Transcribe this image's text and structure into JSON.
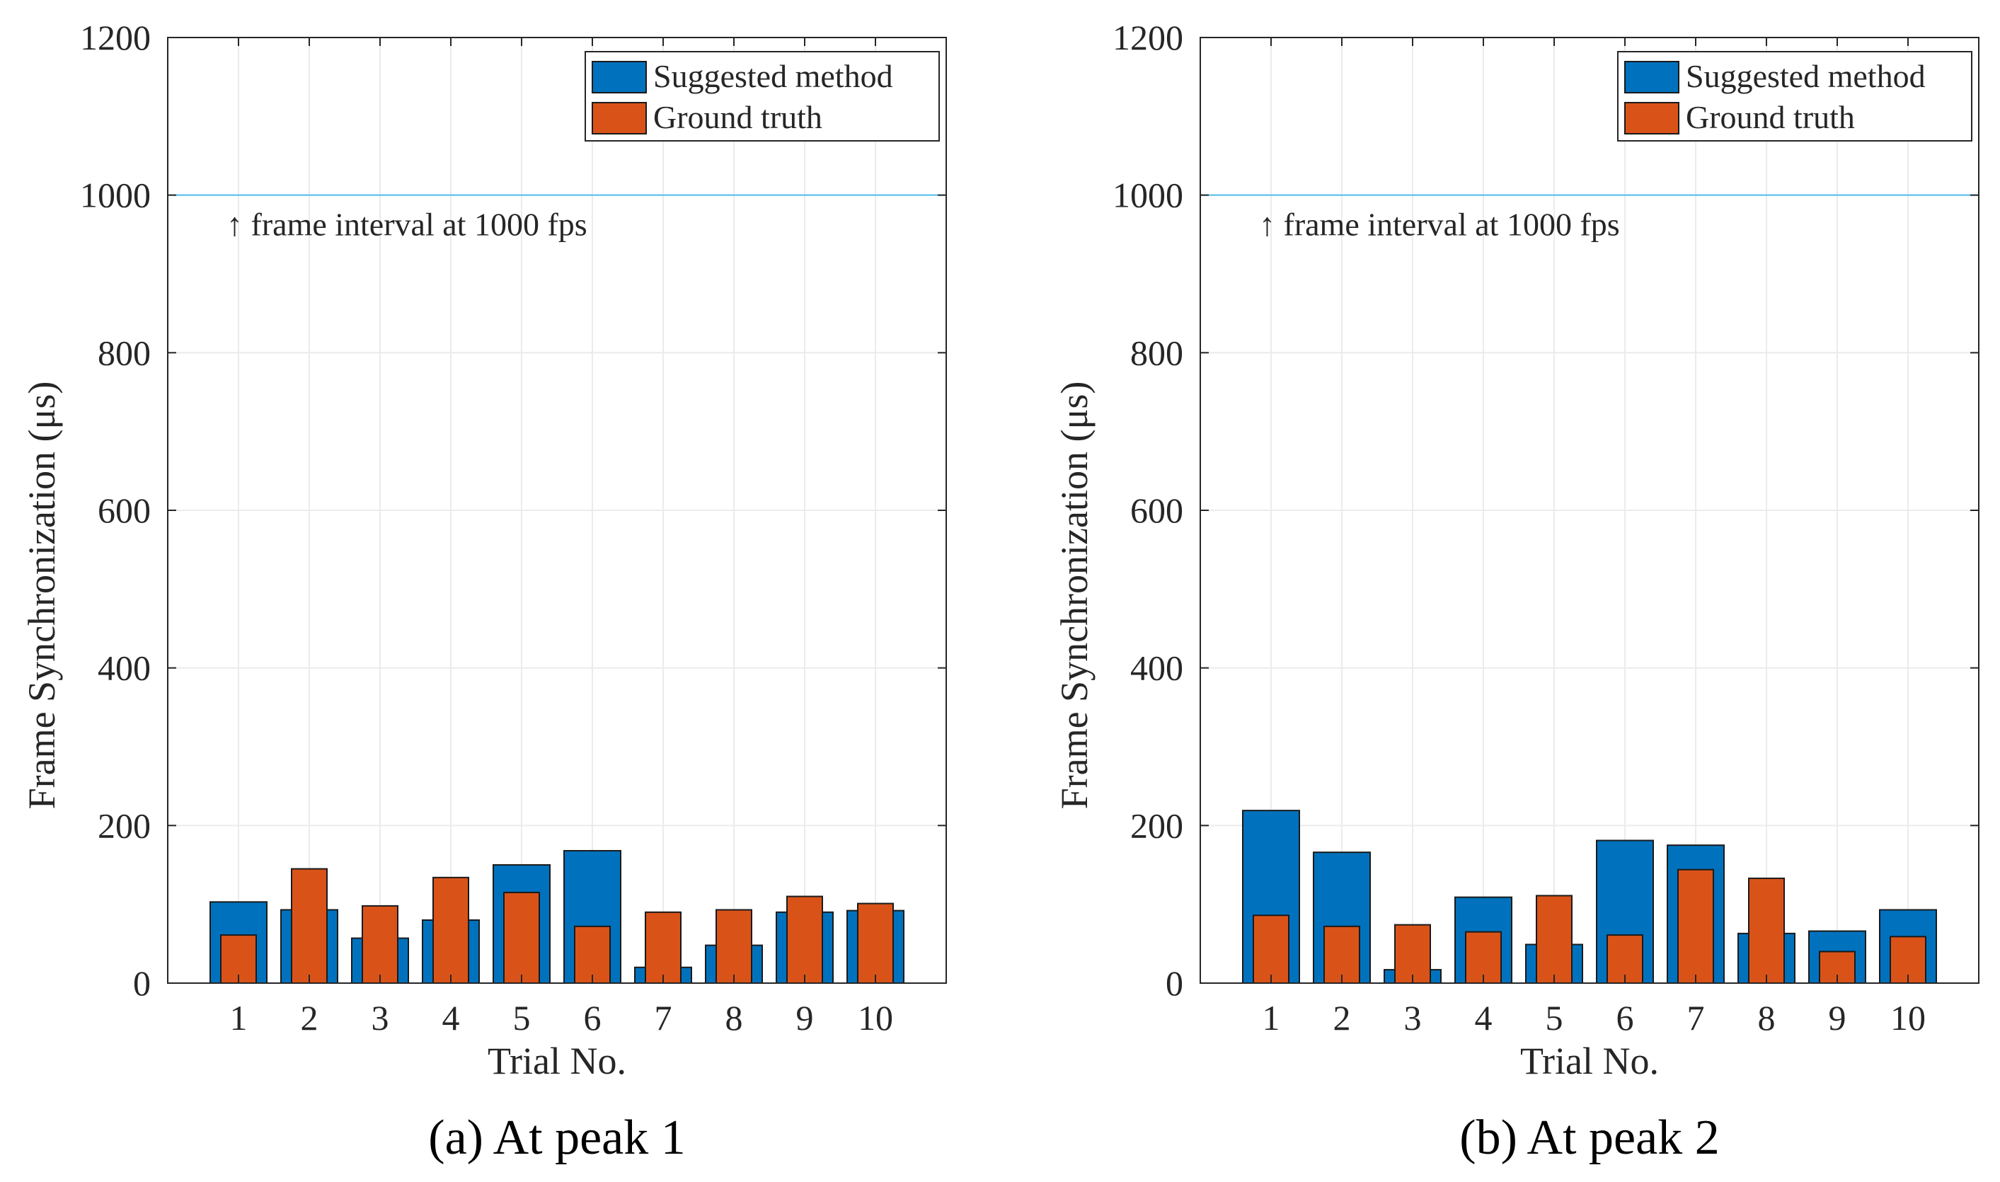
{
  "colors": {
    "suggested": "#0072BD",
    "ground_truth": "#D95319",
    "grid": "#EBEBEB",
    "axis": "#262626",
    "refline": "#4DBEEE"
  },
  "chart_data": [
    {
      "type": "bar",
      "caption": "(a) At peak 1",
      "xlabel": "Trial No.",
      "ylabel": "Frame Synchronization (μs)",
      "ylim": [
        0,
        1200
      ],
      "yticks": [
        0,
        200,
        400,
        600,
        800,
        1000,
        1200
      ],
      "categories": [
        "1",
        "2",
        "3",
        "4",
        "5",
        "6",
        "7",
        "8",
        "9",
        "10"
      ],
      "series": [
        {
          "name": "Suggested method",
          "values": [
            103,
            93,
            57,
            80,
            150,
            168,
            20,
            48,
            90,
            92
          ]
        },
        {
          "name": "Ground truth",
          "values": [
            61,
            145,
            98,
            134,
            115,
            72,
            90,
            93,
            110,
            101
          ]
        }
      ],
      "reference_line": {
        "y": 1000,
        "label": "↑ frame interval at 1000 fps"
      },
      "grid": true,
      "legend": "top-right"
    },
    {
      "type": "bar",
      "caption": "(b) At peak 2",
      "xlabel": "Trial No.",
      "ylabel": "Frame Synchronization (μs)",
      "ylim": [
        0,
        1200
      ],
      "yticks": [
        0,
        200,
        400,
        600,
        800,
        1000,
        1200
      ],
      "categories": [
        "1",
        "2",
        "3",
        "4",
        "5",
        "6",
        "7",
        "8",
        "9",
        "10"
      ],
      "series": [
        {
          "name": "Suggested method",
          "values": [
            219,
            166,
            17,
            109,
            49,
            181,
            175,
            63,
            66,
            93
          ]
        },
        {
          "name": "Ground truth",
          "values": [
            86,
            72,
            74,
            65,
            111,
            61,
            144,
            133,
            40,
            59
          ]
        }
      ],
      "reference_line": {
        "y": 1000,
        "label": "↑ frame interval at 1000 fps"
      },
      "grid": true,
      "legend": "top-right"
    }
  ]
}
